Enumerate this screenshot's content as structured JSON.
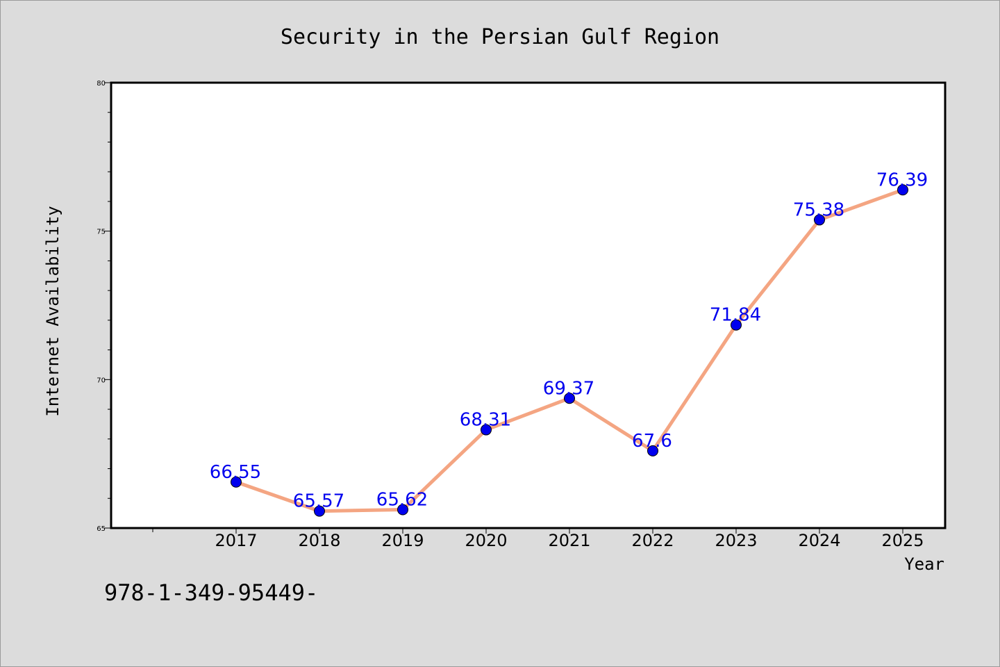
{
  "footer": {
    "isbn_text": "978-1-349-95449-"
  },
  "colors": {
    "line": "#f4a582",
    "marker": "#0000ee",
    "label": "#0000ee",
    "plot_bg": "#ffffff",
    "page_bg": "#dcdcdc"
  },
  "chart_data": {
    "type": "line",
    "title": "Security in the Persian Gulf Region",
    "xlabel": "Year",
    "ylabel": "Internet Availability",
    "categories": [
      "2017",
      "2018",
      "2019",
      "2020",
      "2021",
      "2022",
      "2023",
      "2024",
      "2025"
    ],
    "series": [
      {
        "values": [
          66.55,
          65.57,
          65.62,
          68.31,
          69.37,
          67.6,
          71.84,
          75.38,
          76.39
        ]
      }
    ],
    "data_labels": [
      "66.55",
      "65.57",
      "65.62",
      "68.31",
      "69.37",
      "67.6",
      "71.84",
      "75.38",
      "76.39"
    ],
    "ylim": [
      65,
      80
    ],
    "yticks": [
      65,
      70,
      75,
      80
    ],
    "grid": false,
    "legend": "none"
  }
}
